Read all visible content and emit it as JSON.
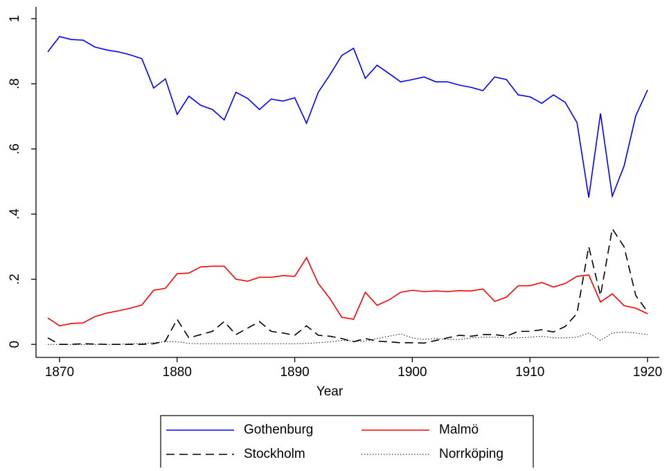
{
  "chart_data": {
    "type": "line",
    "x": [
      1869,
      1870,
      1871,
      1872,
      1873,
      1874,
      1875,
      1876,
      1877,
      1878,
      1879,
      1880,
      1881,
      1882,
      1883,
      1884,
      1885,
      1886,
      1887,
      1888,
      1889,
      1890,
      1891,
      1892,
      1893,
      1894,
      1895,
      1896,
      1897,
      1898,
      1899,
      1900,
      1901,
      1902,
      1903,
      1904,
      1905,
      1906,
      1907,
      1908,
      1909,
      1910,
      1911,
      1912,
      1913,
      1914,
      1915,
      1916,
      1917,
      1918,
      1919,
      1920
    ],
    "xlabel": "Year",
    "xlim": [
      1868,
      1921
    ],
    "xticks": [
      1870,
      1880,
      1890,
      1900,
      1910,
      1920
    ],
    "ylim": [
      -0.04,
      1.036
    ],
    "yticks": [
      0,
      {
        "value": 0.2,
        "label": ".2"
      },
      {
        "value": 0.4,
        "label": ".4"
      },
      {
        "value": 0.6,
        "label": ".6"
      },
      {
        "value": 0.8,
        "label": ".8"
      },
      1
    ],
    "grid": false,
    "legend": "bottom",
    "series": [
      {
        "name": "Gothenburg",
        "color": "#0000ff",
        "style": "solid",
        "values": [
          0.898,
          0.945,
          0.936,
          0.934,
          0.913,
          0.904,
          0.898,
          0.889,
          0.877,
          0.787,
          0.815,
          0.706,
          0.762,
          0.734,
          0.721,
          0.689,
          0.774,
          0.755,
          0.721,
          0.753,
          0.747,
          0.757,
          0.679,
          0.774,
          0.828,
          0.887,
          0.909,
          0.817,
          0.857,
          0.832,
          0.806,
          0.813,
          0.821,
          0.806,
          0.806,
          0.796,
          0.789,
          0.779,
          0.821,
          0.813,
          0.766,
          0.76,
          0.74,
          0.766,
          0.743,
          0.681,
          0.451,
          0.709,
          0.455,
          0.547,
          0.702,
          0.781
        ]
      },
      {
        "name": "Malmö",
        "color": "#ff0000",
        "style": "solid",
        "values": [
          0.081,
          0.057,
          0.064,
          0.066,
          0.085,
          0.096,
          0.103,
          0.111,
          0.121,
          0.166,
          0.172,
          0.217,
          0.219,
          0.238,
          0.24,
          0.24,
          0.2,
          0.194,
          0.206,
          0.206,
          0.211,
          0.209,
          0.266,
          0.187,
          0.14,
          0.083,
          0.077,
          0.16,
          0.12,
          0.136,
          0.16,
          0.166,
          0.162,
          0.164,
          0.162,
          0.165,
          0.164,
          0.17,
          0.132,
          0.145,
          0.18,
          0.18,
          0.19,
          0.176,
          0.187,
          0.209,
          0.213,
          0.13,
          0.155,
          0.119,
          0.111,
          0.094
        ]
      },
      {
        "name": "Stockholm",
        "color": "#000000",
        "style": "dashed",
        "values": [
          0.02,
          0,
          0,
          0.002,
          0.001,
          0,
          0,
          0,
          0,
          0.002,
          0.01,
          0.077,
          0.02,
          0.03,
          0.04,
          0.07,
          0.03,
          0.05,
          0.07,
          0.04,
          0.035,
          0.028,
          0.057,
          0.028,
          0.025,
          0.018,
          0.008,
          0.018,
          0.01,
          0.008,
          0.005,
          0.005,
          0.004,
          0.012,
          0.02,
          0.028,
          0.025,
          0.03,
          0.03,
          0.025,
          0.04,
          0.04,
          0.045,
          0.038,
          0.055,
          0.095,
          0.3,
          0.15,
          0.355,
          0.3,
          0.15,
          0.1
        ]
      },
      {
        "name": "Norrköping",
        "color": "#000000",
        "style": "dotted",
        "values": [
          0,
          0,
          0,
          0,
          0,
          0,
          0,
          0.002,
          0.003,
          0.005,
          0.008,
          0.008,
          0.003,
          0.002,
          0.002,
          0.002,
          0.002,
          0.002,
          0.002,
          0.002,
          0.002,
          0.002,
          0.003,
          0.005,
          0.008,
          0.012,
          0.01,
          0.01,
          0.018,
          0.025,
          0.032,
          0.02,
          0.015,
          0.018,
          0.015,
          0.015,
          0.02,
          0.022,
          0.022,
          0.02,
          0.02,
          0.022,
          0.025,
          0.02,
          0.02,
          0.022,
          0.035,
          0.012,
          0.035,
          0.038,
          0.035,
          0.03
        ]
      }
    ]
  }
}
